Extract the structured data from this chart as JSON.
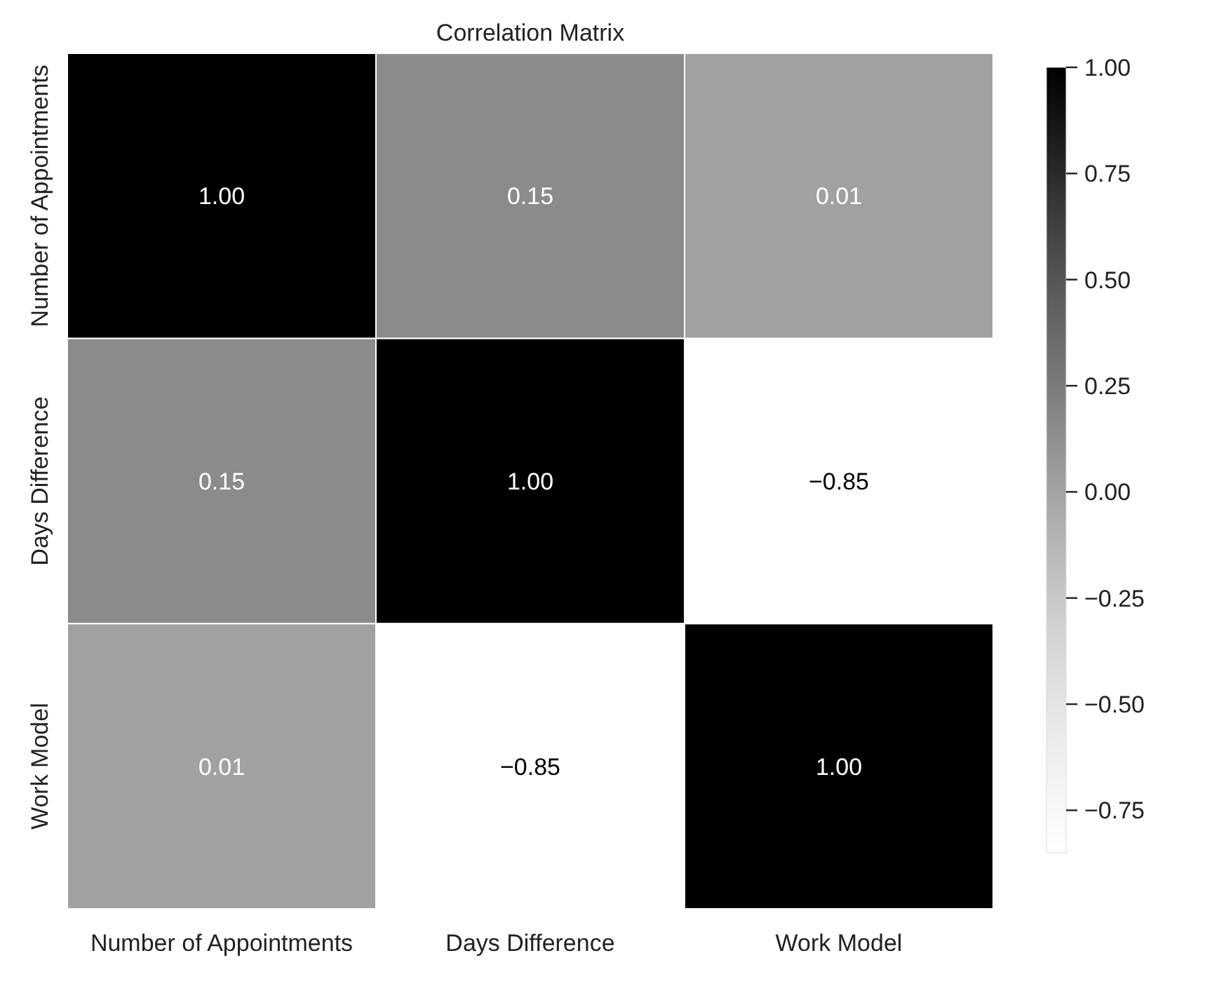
{
  "chart_data": {
    "type": "heatmap",
    "title": "Correlation Matrix",
    "categories": [
      "Number of Appointments",
      "Days Difference",
      "Work Model"
    ],
    "y_categories": [
      "Number of Appointments",
      "Days Difference",
      "Work Model"
    ],
    "cells": [
      [
        1.0,
        0.15,
        0.01
      ],
      [
        0.15,
        1.0,
        -0.85
      ],
      [
        0.01,
        -0.85,
        1.0
      ]
    ],
    "cell_labels": [
      [
        "1.00",
        "0.15",
        "0.01"
      ],
      [
        "0.15",
        "1.00",
        "−0.85"
      ],
      [
        "0.01",
        "−0.85",
        "1.00"
      ]
    ],
    "clim": [
      -0.85,
      1.0
    ],
    "cticks": [
      {
        "value": 1.0,
        "label": "1.00"
      },
      {
        "value": 0.75,
        "label": "0.75"
      },
      {
        "value": 0.5,
        "label": "0.50"
      },
      {
        "value": 0.25,
        "label": "0.25"
      },
      {
        "value": 0,
        "label": "0.00"
      },
      {
        "value": -0.25,
        "label": "−0.25"
      },
      {
        "value": -0.5,
        "label": "−0.50"
      },
      {
        "value": -0.75,
        "label": "−0.75"
      }
    ]
  }
}
